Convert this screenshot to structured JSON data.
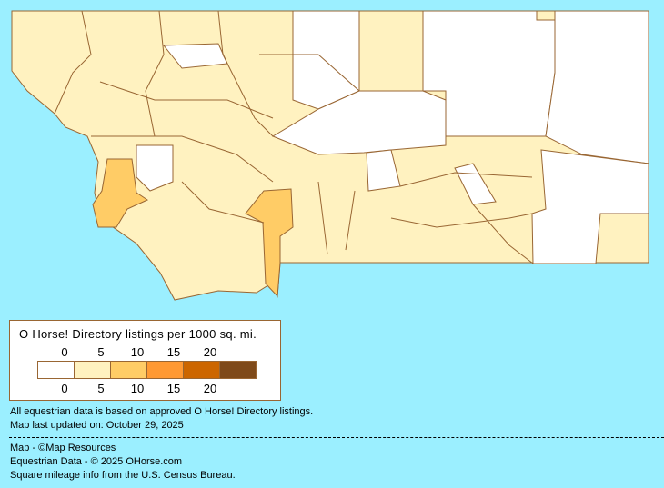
{
  "legend": {
    "title": "O Horse! Directory listings per 1000 sq. mi.",
    "top_labels": [
      "0",
      "5",
      "10",
      "15",
      "20"
    ],
    "bottom_labels": [
      "0",
      "5",
      "10",
      "15",
      "20"
    ],
    "colors": [
      "#ffffff",
      "#fff2c0",
      "#ffcc66",
      "#ff9933",
      "#cc6600",
      "#7f4a1a"
    ]
  },
  "colors": {
    "background": "#9befff",
    "border": "#996633"
  },
  "notes": {
    "data_basis": "All equestrian data is based on approved O Horse! Directory listings.",
    "updated": "Map last updated on: October 29, 2025"
  },
  "credits": {
    "map": "Map - ©Map Resources",
    "data": "Equestrian Data - © 2025 OHorse.com",
    "census": "Square mileage info from the U.S. Census Bureau."
  }
}
